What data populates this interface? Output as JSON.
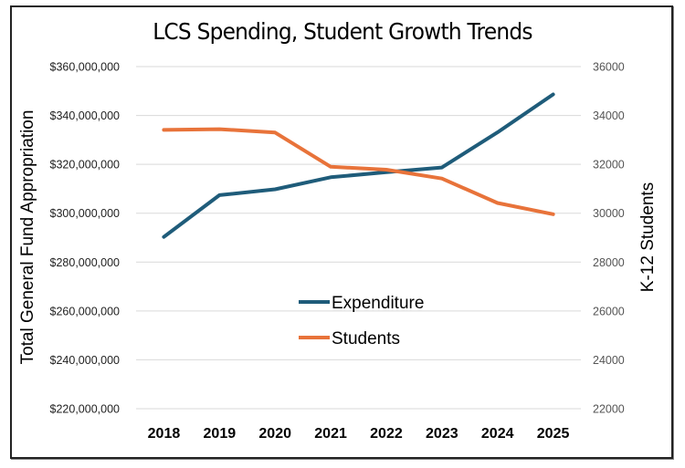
{
  "chart_data": {
    "type": "line",
    "title": "LCS Spending, Student Growth Trends",
    "categories": [
      "2018",
      "2019",
      "2020",
      "2021",
      "2022",
      "2023",
      "2024",
      "2025"
    ],
    "series": [
      {
        "name": "Expenditure",
        "axis": "left",
        "color": "#1F5C7A",
        "values": [
          290300000,
          307400000,
          309800000,
          314700000,
          316800000,
          318700000,
          333100000,
          348600000
        ]
      },
      {
        "name": "Students",
        "axis": "right",
        "color": "#E8733A",
        "values": [
          33410,
          33440,
          33300,
          31900,
          31780,
          31420,
          30420,
          29960
        ]
      }
    ],
    "ylabel": "Total General Fund Appropriation",
    "ylabel_right": "K-12 Students",
    "xlabel": "",
    "ylim": [
      220000000,
      360000000
    ],
    "ylim_right": [
      22000,
      36000
    ],
    "yticks": [
      "$220,000,000",
      "$240,000,000",
      "$260,000,000",
      "$280,000,000",
      "$300,000,000",
      "$320,000,000",
      "$340,000,000",
      "$360,000,000"
    ],
    "yticks_right": [
      "22000",
      "24000",
      "26000",
      "28000",
      "30000",
      "32000",
      "34000",
      "36000"
    ],
    "grid": true,
    "legend_position": "center"
  }
}
